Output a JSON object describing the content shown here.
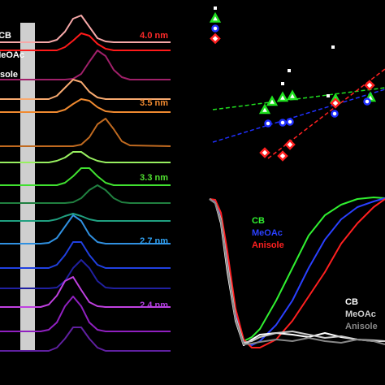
{
  "chart_data": [
    {
      "type": "line",
      "xlim": [
        0,
        210
      ],
      "ylim": [
        0,
        474
      ],
      "x": [
        0,
        40,
        50,
        60,
        70,
        80,
        90,
        100,
        110,
        120,
        130,
        140,
        150,
        160,
        210
      ],
      "legend": [
        "CB",
        "MeOAc",
        "Anisole"
      ],
      "annotations": [
        {
          "text": "4.0 nm",
          "color": "#ff2a2a"
        },
        {
          "text": "3.5 nm",
          "color": "#f08a30"
        },
        {
          "text": "3.3 nm",
          "color": "#50e030"
        },
        {
          "text": "2.7 nm",
          "color": "#30a0f0"
        },
        {
          "text": "2.4 nm",
          "color": "#b040e0"
        }
      ],
      "series": [
        {
          "color": "#f6a8a8",
          "values": [
            422,
            422,
            422,
            422,
            425,
            435,
            451,
            455,
            441,
            427,
            423,
            422,
            422,
            422,
            422
          ]
        },
        {
          "color": "#ff1a1a",
          "values": [
            412,
            412,
            412,
            412,
            412,
            416,
            424,
            433,
            430,
            420,
            414,
            412,
            412,
            412,
            412
          ]
        },
        {
          "color": "#a0206a",
          "values": [
            376,
            376,
            376,
            376,
            376,
            376,
            377,
            383,
            398,
            412,
            405,
            388,
            379,
            376,
            376
          ]
        },
        {
          "color": "#f8aa70",
          "values": [
            352,
            352,
            352,
            352,
            356,
            366,
            376,
            373,
            361,
            354,
            352,
            352,
            352,
            352,
            352
          ]
        },
        {
          "color": "#f08a30",
          "values": [
            336,
            336,
            336,
            336,
            336,
            339,
            346,
            352,
            350,
            342,
            337,
            336,
            336,
            336,
            336
          ]
        },
        {
          "color": "#c06a20",
          "values": [
            294,
            294,
            294,
            294,
            294,
            294,
            294,
            296,
            305,
            321,
            328,
            315,
            300,
            295,
            294
          ]
        },
        {
          "color": "#98f060",
          "values": [
            274,
            274,
            274,
            274,
            276,
            280,
            287,
            287,
            280,
            276,
            274,
            274,
            274,
            274,
            274
          ]
        },
        {
          "color": "#40e030",
          "values": [
            246,
            246,
            246,
            246,
            246,
            249,
            257,
            267,
            267,
            257,
            249,
            246,
            246,
            246,
            246
          ]
        },
        {
          "color": "#208040",
          "values": [
            224,
            224,
            224,
            224,
            224,
            224,
            225,
            230,
            240,
            246,
            240,
            230,
            225,
            224,
            224
          ]
        },
        {
          "color": "#20a080",
          "values": [
            202,
            202,
            202,
            202,
            204,
            208,
            211,
            208,
            204,
            202,
            202,
            202,
            202,
            202,
            202
          ]
        },
        {
          "color": "#3090e0",
          "values": [
            174,
            174,
            174,
            175,
            181,
            195,
            209,
            202,
            185,
            176,
            174,
            174,
            174,
            174,
            174
          ]
        },
        {
          "color": "#2040e0",
          "values": [
            144,
            144,
            144,
            144,
            148,
            160,
            176,
            176,
            160,
            148,
            144,
            144,
            144,
            144,
            144
          ]
        },
        {
          "color": "#2020a0",
          "values": [
            119,
            119,
            119,
            119,
            120,
            128,
            144,
            154,
            144,
            128,
            120,
            119,
            119,
            119,
            119
          ]
        },
        {
          "color": "#c040e0",
          "values": [
            96,
            96,
            96,
            99,
            110,
            128,
            133,
            117,
            102,
            97,
            96,
            96,
            96,
            96,
            96
          ]
        },
        {
          "color": "#9020c0",
          "values": [
            66,
            66,
            66,
            68,
            77,
            97,
            109,
            97,
            77,
            68,
            66,
            66,
            66,
            66,
            66
          ]
        },
        {
          "color": "#6020a0",
          "values": [
            42,
            42,
            42,
            42,
            46,
            57,
            71,
            71,
            57,
            46,
            42,
            42,
            42,
            42,
            42
          ]
        }
      ]
    },
    {
      "type": "scatter",
      "xlim": [
        0,
        219
      ],
      "ylim": [
        0,
        200
      ],
      "series": [
        {
          "color": "#ffffff",
          "marker": "square",
          "x": [
            155,
            101,
            93,
            149
          ],
          "values": [
            142,
            113,
            97,
            82
          ]
        },
        {
          "color": "#20e020",
          "marker": "triangle",
          "x": [
            71,
            80,
            93,
            105,
            158,
            201
          ],
          "values": [
            65,
            75,
            80,
            82,
            78,
            80
          ]
        },
        {
          "color": "#2030ff",
          "marker": "circle",
          "x": [
            75,
            93,
            102,
            157,
            197
          ],
          "values": [
            48,
            49,
            50,
            60,
            75
          ]
        },
        {
          "color": "#ff2020",
          "marker": "diamond",
          "x": [
            71,
            93,
            102,
            158,
            200
          ],
          "values": [
            12,
            8,
            22,
            73,
            95
          ]
        }
      ],
      "fits": [
        {
          "color": "#20e020",
          "x": [
            7,
            219
          ],
          "values": [
            65,
            92
          ]
        },
        {
          "color": "#2030ff",
          "x": [
            7,
            219
          ],
          "values": [
            25,
            90
          ]
        },
        {
          "color": "#ff2020",
          "x": [
            75,
            219
          ],
          "values": [
            5,
            115
          ]
        }
      ]
    },
    {
      "type": "line",
      "xlim": [
        0,
        219
      ],
      "ylim": [
        0,
        205
      ],
      "x": [
        3,
        10,
        17,
        25,
        35,
        45,
        55,
        65,
        85,
        105,
        125,
        145,
        165,
        185,
        205,
        219
      ],
      "series": [
        {
          "name": "CB",
          "color": "#30f030",
          "values": [
            195,
            192,
            170,
            110,
            50,
            20,
            25,
            35,
            70,
            110,
            150,
            175,
            188,
            195,
            197,
            196
          ]
        },
        {
          "name": "MeOAc",
          "color": "#2a40ff",
          "values": [
            195,
            193,
            175,
            120,
            55,
            20,
            15,
            20,
            40,
            70,
            110,
            145,
            170,
            185,
            192,
            196
          ]
        },
        {
          "name": "Anisole",
          "color": "#ff2020",
          "values": [
            195,
            194,
            178,
            130,
            60,
            22,
            12,
            12,
            22,
            45,
            75,
            105,
            140,
            165,
            185,
            195
          ]
        },
        {
          "name": "CB",
          "color": "#ffffff",
          "values": [
            195,
            190,
            165,
            105,
            45,
            15,
            22,
            28,
            30,
            28,
            25,
            30,
            25,
            22,
            20,
            20
          ]
        },
        {
          "name": "MeOAc",
          "color": "#cccccc",
          "values": [
            195,
            190,
            170,
            115,
            50,
            18,
            20,
            25,
            30,
            32,
            28,
            24,
            26,
            22,
            21,
            20
          ]
        },
        {
          "name": "Anisole",
          "color": "#888888",
          "values": [
            195,
            190,
            168,
            110,
            47,
            16,
            17,
            19,
            22,
            20,
            24,
            20,
            18,
            22,
            20,
            16
          ]
        }
      ]
    }
  ]
}
